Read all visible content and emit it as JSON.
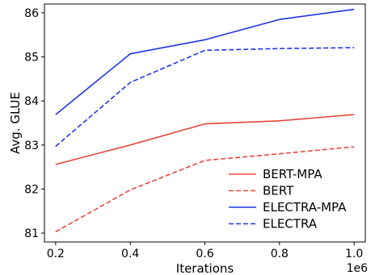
{
  "chart_data": {
    "type": "line",
    "xlabel": "Iterations",
    "ylabel": "Avg. GLUE",
    "x_offset_text": "1e6",
    "x": [
      0.2,
      0.4,
      0.6,
      0.8,
      1.0
    ],
    "xlim": [
      0.17,
      1.03
    ],
    "ylim": [
      80.8,
      86.2
    ],
    "xticks": [
      "0.2",
      "0.4",
      "0.6",
      "0.8",
      "1.0"
    ],
    "yticks": [
      "81",
      "82",
      "83",
      "84",
      "85",
      "86"
    ],
    "grid": false,
    "legend_position": "lower-right",
    "series": [
      {
        "name": "BERT-MPA",
        "color": "#e8483a",
        "dash": "solid",
        "values": [
          82.56,
          83.0,
          83.48,
          83.55,
          83.69
        ]
      },
      {
        "name": "BERT",
        "color": "#e8483a",
        "dash": "dashed",
        "values": [
          81.03,
          81.98,
          82.65,
          82.8,
          82.96
        ]
      },
      {
        "name": "ELECTRA-MPA",
        "color": "#1f35e6",
        "dash": "solid",
        "values": [
          83.69,
          85.07,
          85.39,
          85.85,
          86.08
        ]
      },
      {
        "name": "ELECTRA",
        "color": "#1f35e6",
        "dash": "dashed",
        "values": [
          82.97,
          84.42,
          85.15,
          85.19,
          85.21
        ]
      }
    ]
  }
}
